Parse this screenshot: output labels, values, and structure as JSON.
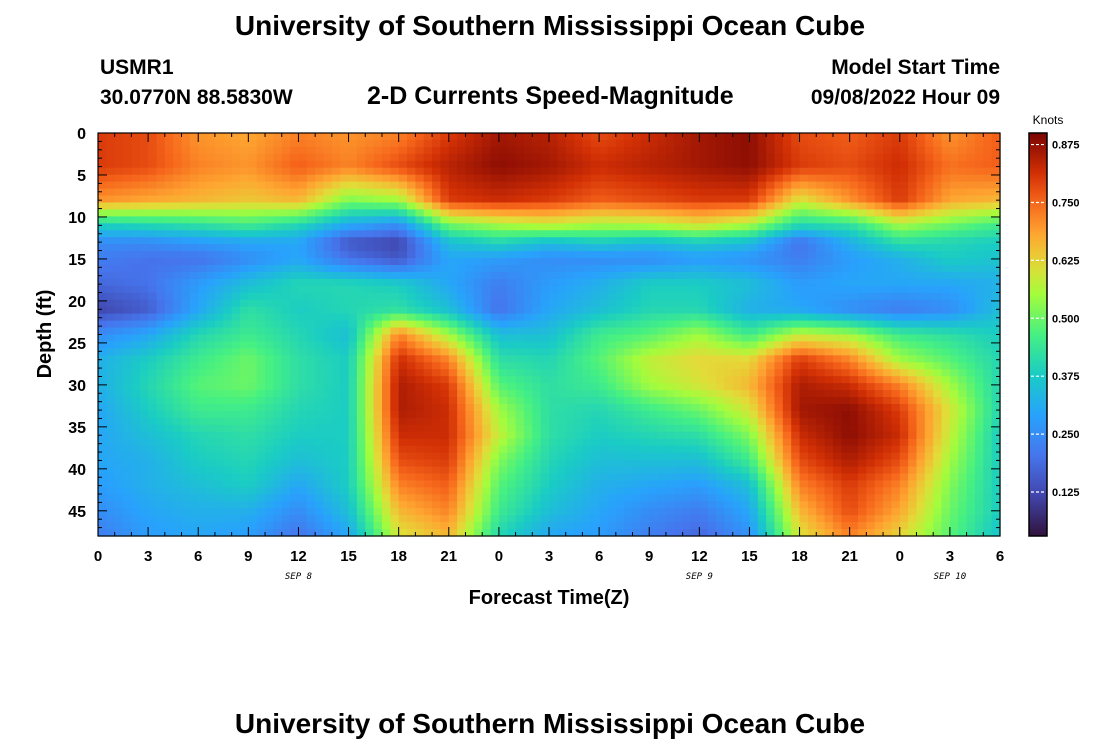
{
  "header": {
    "title": "University of Southern Mississippi Ocean Cube",
    "station_id": "USMR1",
    "coords": "30.0770N  88.5830W",
    "subtitle": "2-D Currents Speed-Magnitude",
    "model_start_label": "Model Start Time",
    "model_start_value": "09/08/2022 Hour 09"
  },
  "footer": {
    "title": "University of Southern Mississippi Ocean Cube"
  },
  "chart_data": {
    "type": "heatmap",
    "title": "2-D Currents Speed-Magnitude",
    "xlabel": "Forecast Time(Z)",
    "ylabel": "Depth (ft)",
    "x_hours": [
      0,
      54
    ],
    "x_tick_labels": [
      "0",
      "3",
      "6",
      "9",
      "12",
      "15",
      "18",
      "21",
      "0",
      "3",
      "6",
      "9",
      "12",
      "15",
      "18",
      "21",
      "0",
      "3",
      "6"
    ],
    "date_labels": [
      {
        "label": "SEP 8",
        "hour": 12
      },
      {
        "label": "SEP 9",
        "hour": 36
      },
      {
        "label": "SEP 10",
        "hour": 51
      }
    ],
    "y_ticks": [
      0,
      5,
      10,
      15,
      20,
      25,
      30,
      35,
      40,
      45
    ],
    "ylim": [
      48,
      0
    ],
    "colorbar": {
      "unit": "Knots",
      "range": [
        0.03,
        0.9
      ],
      "tick_labels": [
        "0.875",
        "0.750",
        "0.625",
        "0.500",
        "0.375",
        "0.250",
        "0.125"
      ],
      "tick_values": [
        0.875,
        0.75,
        0.625,
        0.5,
        0.375,
        0.25,
        0.125
      ]
    },
    "depths_ft": [
      0,
      4,
      8,
      11,
      13,
      15,
      18,
      21,
      24,
      27,
      30,
      33,
      36,
      39,
      42,
      45,
      48
    ],
    "hours": [
      0,
      3,
      6,
      9,
      12,
      15,
      18,
      21,
      24,
      27,
      30,
      33,
      36,
      39,
      42,
      45,
      48,
      51,
      54
    ],
    "speed_knots": [
      [
        0.8,
        0.78,
        0.7,
        0.68,
        0.72,
        0.7,
        0.72,
        0.8,
        0.86,
        0.84,
        0.78,
        0.82,
        0.86,
        0.88,
        0.78,
        0.76,
        0.8,
        0.7,
        0.76
      ],
      [
        0.8,
        0.78,
        0.72,
        0.7,
        0.76,
        0.72,
        0.78,
        0.84,
        0.88,
        0.86,
        0.82,
        0.84,
        0.86,
        0.88,
        0.8,
        0.78,
        0.82,
        0.74,
        0.76
      ],
      [
        0.7,
        0.68,
        0.66,
        0.64,
        0.66,
        0.52,
        0.55,
        0.8,
        0.82,
        0.8,
        0.76,
        0.78,
        0.8,
        0.8,
        0.6,
        0.7,
        0.8,
        0.68,
        0.66
      ],
      [
        0.38,
        0.4,
        0.42,
        0.45,
        0.4,
        0.3,
        0.25,
        0.5,
        0.55,
        0.58,
        0.55,
        0.56,
        0.6,
        0.55,
        0.4,
        0.42,
        0.55,
        0.5,
        0.45
      ],
      [
        0.25,
        0.25,
        0.28,
        0.3,
        0.3,
        0.15,
        0.12,
        0.35,
        0.4,
        0.35,
        0.38,
        0.35,
        0.38,
        0.35,
        0.2,
        0.32,
        0.42,
        0.4,
        0.38
      ],
      [
        0.22,
        0.2,
        0.2,
        0.25,
        0.3,
        0.2,
        0.15,
        0.3,
        0.28,
        0.25,
        0.25,
        0.25,
        0.28,
        0.26,
        0.22,
        0.28,
        0.32,
        0.38,
        0.36
      ],
      [
        0.18,
        0.2,
        0.28,
        0.35,
        0.4,
        0.4,
        0.38,
        0.3,
        0.22,
        0.28,
        0.32,
        0.38,
        0.38,
        0.35,
        0.28,
        0.3,
        0.3,
        0.3,
        0.32
      ],
      [
        0.12,
        0.16,
        0.3,
        0.42,
        0.38,
        0.4,
        0.42,
        0.35,
        0.2,
        0.3,
        0.35,
        0.4,
        0.4,
        0.32,
        0.3,
        0.25,
        0.22,
        0.25,
        0.35
      ],
      [
        0.25,
        0.3,
        0.4,
        0.45,
        0.4,
        0.35,
        0.72,
        0.55,
        0.35,
        0.35,
        0.45,
        0.48,
        0.55,
        0.45,
        0.58,
        0.55,
        0.45,
        0.42,
        0.38
      ],
      [
        0.32,
        0.38,
        0.45,
        0.5,
        0.42,
        0.38,
        0.82,
        0.72,
        0.42,
        0.4,
        0.48,
        0.58,
        0.62,
        0.62,
        0.8,
        0.72,
        0.55,
        0.48,
        0.4
      ],
      [
        0.32,
        0.4,
        0.48,
        0.5,
        0.42,
        0.38,
        0.85,
        0.8,
        0.48,
        0.42,
        0.45,
        0.55,
        0.6,
        0.66,
        0.85,
        0.82,
        0.72,
        0.55,
        0.4
      ],
      [
        0.3,
        0.38,
        0.45,
        0.45,
        0.4,
        0.38,
        0.85,
        0.82,
        0.55,
        0.42,
        0.4,
        0.45,
        0.5,
        0.6,
        0.86,
        0.88,
        0.8,
        0.6,
        0.4
      ],
      [
        0.3,
        0.35,
        0.4,
        0.42,
        0.38,
        0.38,
        0.82,
        0.82,
        0.58,
        0.42,
        0.38,
        0.4,
        0.42,
        0.52,
        0.82,
        0.88,
        0.82,
        0.58,
        0.38
      ],
      [
        0.3,
        0.32,
        0.38,
        0.4,
        0.35,
        0.38,
        0.78,
        0.8,
        0.52,
        0.4,
        0.35,
        0.35,
        0.35,
        0.45,
        0.78,
        0.85,
        0.78,
        0.55,
        0.38
      ],
      [
        0.28,
        0.32,
        0.35,
        0.38,
        0.3,
        0.38,
        0.72,
        0.76,
        0.48,
        0.38,
        0.32,
        0.3,
        0.28,
        0.35,
        0.72,
        0.8,
        0.72,
        0.52,
        0.38
      ],
      [
        0.25,
        0.3,
        0.32,
        0.32,
        0.25,
        0.35,
        0.66,
        0.72,
        0.45,
        0.35,
        0.3,
        0.25,
        0.22,
        0.3,
        0.66,
        0.78,
        0.68,
        0.5,
        0.38
      ],
      [
        0.22,
        0.28,
        0.3,
        0.28,
        0.2,
        0.3,
        0.6,
        0.66,
        0.4,
        0.3,
        0.28,
        0.22,
        0.18,
        0.26,
        0.6,
        0.72,
        0.62,
        0.48,
        0.36
      ]
    ]
  }
}
